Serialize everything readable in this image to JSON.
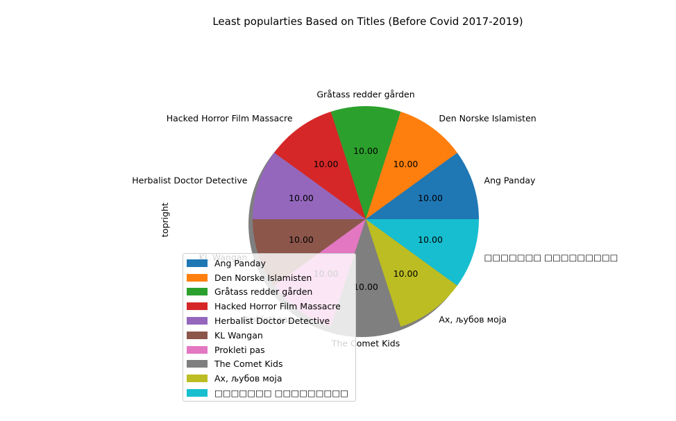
{
  "chart_data": {
    "type": "pie",
    "title": "Least popularties Based on Titles (Before Covid 2017-2019)",
    "ylabel": "topright",
    "labels": [
      "Ang Panday",
      "Den Norske Islamisten",
      "Gråtass redder gården",
      "Hacked Horror Film Massacre",
      "Herbalist Doctor Detective",
      "KL Wangan",
      "Prokleti pas",
      "The Comet Kids",
      "Ах, љубов моја",
      "□□□□□□□ □□□□□□□□□"
    ],
    "values": [
      10,
      10,
      10,
      10,
      10,
      10,
      10,
      10,
      10,
      10
    ],
    "value_labels": [
      "10.00",
      "10.00",
      "10.00",
      "10.00",
      "10.00",
      "10.00",
      "10.00",
      "10.00",
      "10.00",
      "10.00"
    ],
    "colors": [
      "#1f77b4",
      "#ff7f0e",
      "#2ca02c",
      "#d62728",
      "#9467bd",
      "#8c564b",
      "#e377c2",
      "#7f7f7f",
      "#bcbd22",
      "#17becf"
    ],
    "start_angle": 0,
    "direction": "counterclockwise",
    "shadow": true,
    "legend": "lower-left, overlapping pie"
  }
}
